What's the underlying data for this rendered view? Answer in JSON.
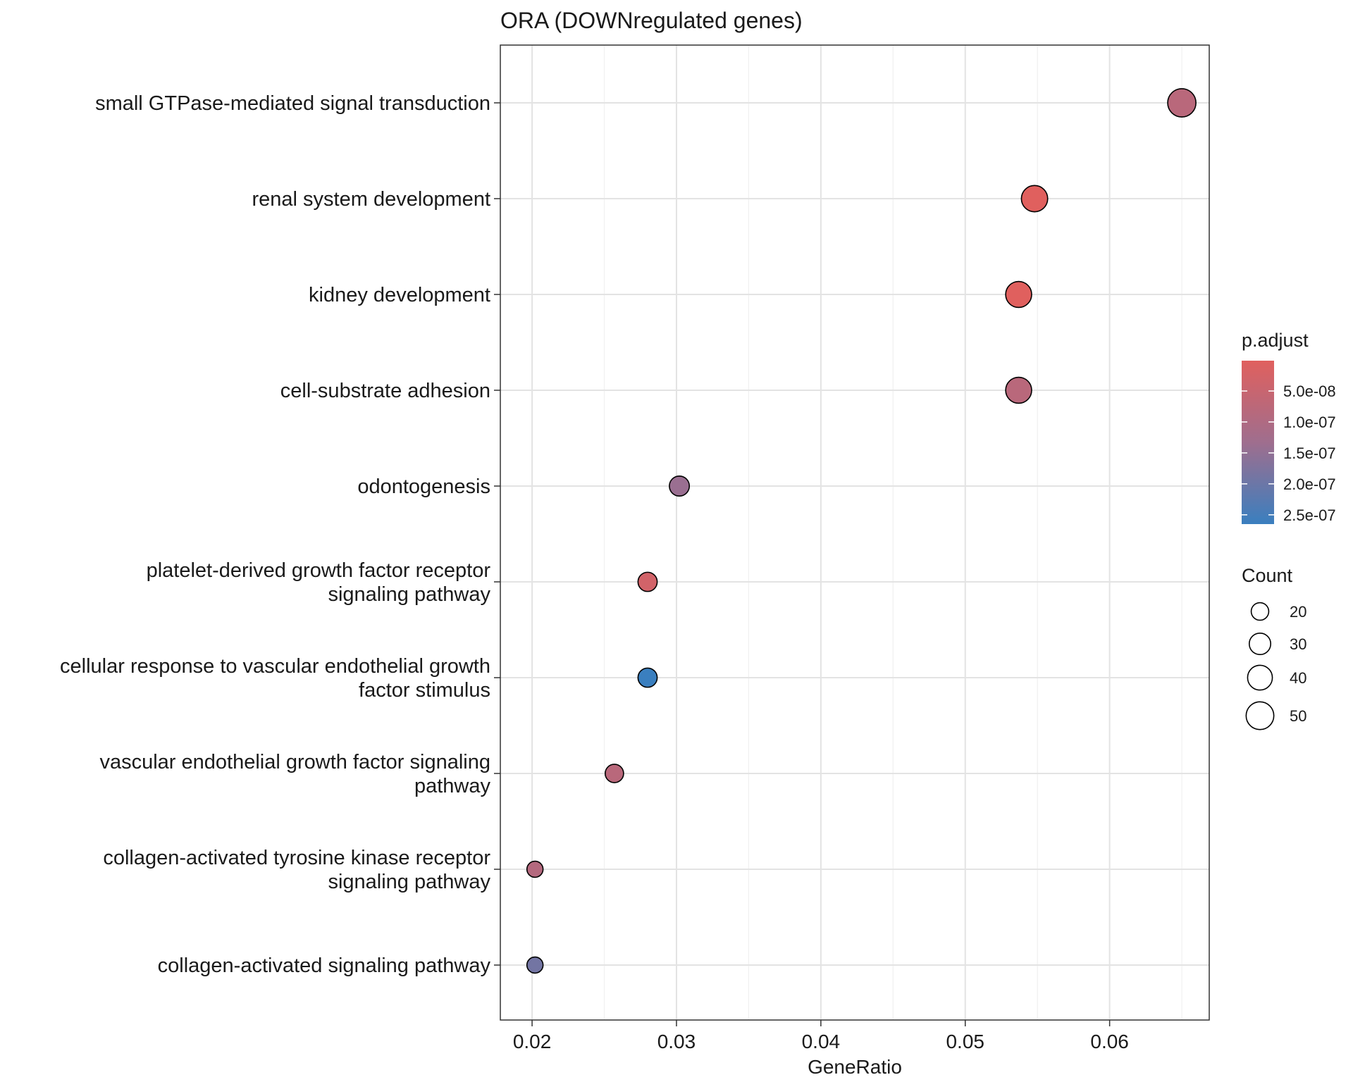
{
  "chart_data": {
    "type": "scatter",
    "title": "ORA (DOWNregulated genes)",
    "xlabel": "GeneRatio",
    "ylabel": "",
    "xlim": [
      0.0178,
      0.0669
    ],
    "xticks": [
      0.02,
      0.03,
      0.04,
      0.05,
      0.06
    ],
    "xtick_labels": [
      "0.02",
      "0.03",
      "0.04",
      "0.05",
      "0.06"
    ],
    "grid": true,
    "points": [
      {
        "term": [
          "small GTPase-mediated signal transduction"
        ],
        "gene_ratio": 0.065,
        "count": 52,
        "p_adjust": 8e-08
      },
      {
        "term": [
          "renal system development"
        ],
        "gene_ratio": 0.0548,
        "count": 45,
        "p_adjust": 1e-09
      },
      {
        "term": [
          "kidney development"
        ],
        "gene_ratio": 0.0537,
        "count": 44,
        "p_adjust": 1e-09
      },
      {
        "term": [
          "cell-substrate adhesion"
        ],
        "gene_ratio": 0.0537,
        "count": 44,
        "p_adjust": 8e-08
      },
      {
        "term": [
          "odontogenesis"
        ],
        "gene_ratio": 0.0302,
        "count": 26,
        "p_adjust": 1.4e-07
      },
      {
        "term": [
          "platelet-derived growth factor receptor",
          "signaling pathway"
        ],
        "gene_ratio": 0.028,
        "count": 24,
        "p_adjust": 3e-08
      },
      {
        "term": [
          "cellular response to vascular endothelial growth",
          "factor stimulus"
        ],
        "gene_ratio": 0.028,
        "count": 24,
        "p_adjust": 2.65e-07
      },
      {
        "term": [
          "vascular endothelial growth factor signaling",
          "pathway"
        ],
        "gene_ratio": 0.0257,
        "count": 22,
        "p_adjust": 8e-08
      },
      {
        "term": [
          "collagen-activated tyrosine kinase receptor",
          "signaling pathway"
        ],
        "gene_ratio": 0.0202,
        "count": 17,
        "p_adjust": 9e-08
      },
      {
        "term": [
          "collagen-activated signaling pathway"
        ],
        "gene_ratio": 0.0202,
        "count": 17,
        "p_adjust": 1.9e-07
      }
    ],
    "color_legend": {
      "title": "p.adjust",
      "low_color": "#e0605e",
      "high_color": "#3a7fbf",
      "range": [
        1e-09,
        2.65e-07
      ],
      "breaks": [
        5e-08,
        1e-07,
        1.5e-07,
        2e-07,
        2.5e-07
      ],
      "labels": [
        "5.0e-08",
        "1.0e-07",
        "1.5e-07",
        "2.0e-07",
        "2.5e-07"
      ]
    },
    "size_legend": {
      "title": "Count",
      "values": [
        20,
        30,
        40,
        50
      ],
      "labels": [
        "20",
        "30",
        "40",
        "50"
      ]
    }
  }
}
